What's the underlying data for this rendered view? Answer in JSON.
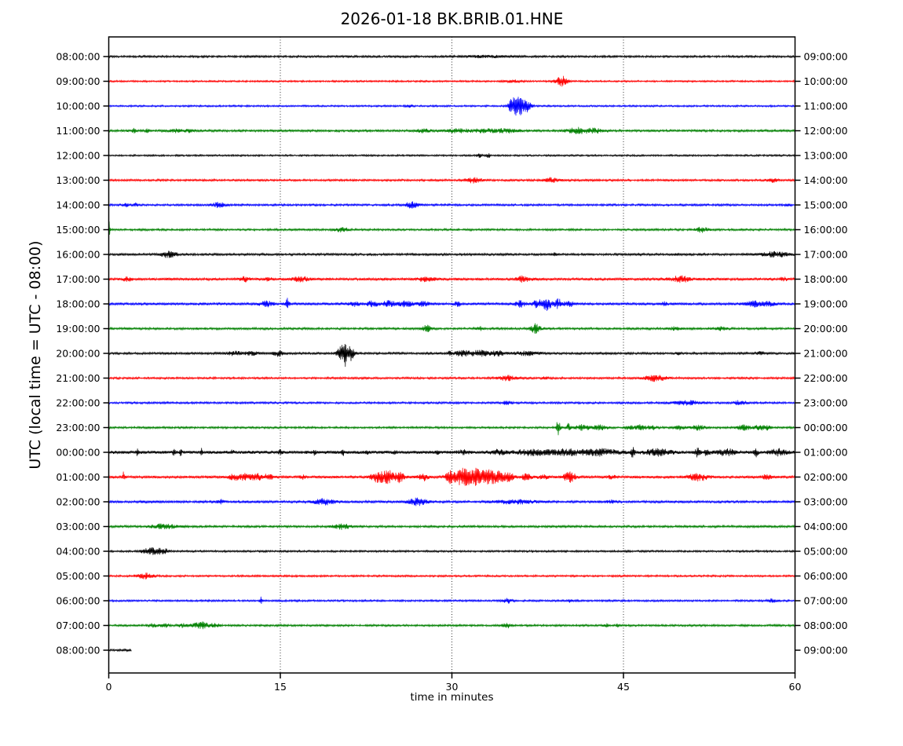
{
  "title": "2026-01-18 BK.BRIB.01.HNE",
  "x_axis": {
    "label": "time in minutes",
    "tick_values": [
      0,
      15,
      30,
      45,
      60
    ],
    "gridlines": [
      15,
      30,
      45
    ],
    "range": [
      0,
      60
    ]
  },
  "y_axis": {
    "label": "UTC (local time = UTC - 08:00)"
  },
  "chart_data": {
    "type": "line",
    "title": "2026-01-18 BK.BRIB.01.HNE",
    "xlabel": "time in minutes",
    "ylabel": "UTC (local time = UTC - 08:00)",
    "xlim": [
      0,
      60
    ],
    "minutes_per_row": 60,
    "grid": "vertical-dotted",
    "color_cycle": [
      "#000000",
      "#ff0000",
      "#0000ff",
      "#008000"
    ],
    "burst_format": "[center_minute, amplitude_px, width_minutes]",
    "rows": [
      {
        "utc_start": "08:00:00",
        "utc_end": "09:00:00",
        "color": "#000000",
        "base_amp": 1.3,
        "trace_end_min": 60,
        "bursts": [
          [
            33,
            1,
            1.5
          ]
        ]
      },
      {
        "utc_start": "09:00:00",
        "utc_end": "10:00:00",
        "color": "#ff0000",
        "base_amp": 1.1,
        "trace_end_min": 60,
        "bursts": [
          [
            35.4,
            1.2,
            0.5
          ],
          [
            39.6,
            6.5,
            0.35
          ]
        ]
      },
      {
        "utc_start": "10:00:00",
        "utc_end": "11:00:00",
        "color": "#0000ff",
        "base_amp": 1.1,
        "trace_end_min": 60,
        "bursts": [
          [
            26.3,
            1.5,
            0.2
          ],
          [
            35.3,
            9,
            0.25
          ],
          [
            35.9,
            12,
            0.3
          ],
          [
            36.6,
            7,
            0.25
          ]
        ]
      },
      {
        "utc_start": "11:00:00",
        "utc_end": "12:00:00",
        "color": "#008000",
        "base_amp": 1.4,
        "trace_end_min": 60,
        "bursts": [
          [
            2.2,
            2.2,
            0.15
          ],
          [
            3.4,
            1.8,
            0.15
          ],
          [
            5.7,
            2.2,
            0.4
          ],
          [
            7,
            1.5,
            0.3
          ],
          [
            27.5,
            2,
            0.4
          ],
          [
            30.5,
            2,
            0.8
          ],
          [
            33,
            2.2,
            0.8
          ],
          [
            35,
            2.5,
            0.6
          ],
          [
            41,
            3.5,
            0.7
          ],
          [
            42.5,
            2.5,
            0.4
          ]
        ]
      },
      {
        "utc_start": "12:00:00",
        "utc_end": "13:00:00",
        "color": "#000000",
        "base_amp": 1.1,
        "trace_end_min": 60,
        "bursts": [
          [
            32.4,
            2.8,
            0.12
          ],
          [
            33.2,
            2.8,
            0.12
          ]
        ]
      },
      {
        "utc_start": "13:00:00",
        "utc_end": "14:00:00",
        "color": "#ff0000",
        "base_amp": 1.3,
        "trace_end_min": 60,
        "bursts": [
          [
            31.9,
            3.2,
            0.5
          ],
          [
            38.7,
            3,
            0.4
          ],
          [
            58,
            2.2,
            0.3
          ]
        ]
      },
      {
        "utc_start": "14:00:00",
        "utc_end": "15:00:00",
        "color": "#0000ff",
        "base_amp": 1.3,
        "trace_end_min": 60,
        "bursts": [
          [
            1.5,
            2,
            0.15
          ],
          [
            2.3,
            2,
            0.15
          ],
          [
            9.6,
            2.8,
            0.4
          ],
          [
            26.5,
            3.5,
            0.4
          ],
          [
            59.4,
            2,
            0.15
          ]
        ]
      },
      {
        "utc_start": "15:00:00",
        "utc_end": "16:00:00",
        "color": "#008000",
        "base_amp": 1.3,
        "trace_end_min": 60,
        "bursts": [
          [
            0.05,
            13,
            0.04
          ],
          [
            20.4,
            2.5,
            0.4
          ],
          [
            51.8,
            3.2,
            0.4
          ]
        ]
      },
      {
        "utc_start": "16:00:00",
        "utc_end": "17:00:00",
        "color": "#000000",
        "base_amp": 1.4,
        "trace_end_min": 60,
        "bursts": [
          [
            5.3,
            3.8,
            0.5
          ],
          [
            39,
            1.8,
            0.1
          ],
          [
            49.7,
            2,
            0.12
          ],
          [
            58.3,
            3,
            0.8
          ]
        ]
      },
      {
        "utc_start": "17:00:00",
        "utc_end": "18:00:00",
        "color": "#ff0000",
        "base_amp": 1.6,
        "trace_end_min": 60,
        "bursts": [
          [
            1.6,
            2.5,
            0.25
          ],
          [
            11.9,
            2.5,
            0.3
          ],
          [
            14,
            2,
            0.2
          ],
          [
            16.8,
            3,
            0.5
          ],
          [
            27.8,
            3,
            0.5
          ],
          [
            36.2,
            3.5,
            0.4
          ],
          [
            50,
            3.5,
            0.6
          ],
          [
            59,
            2,
            0.2
          ]
        ]
      },
      {
        "utc_start": "18:00:00",
        "utc_end": "19:00:00",
        "color": "#0000ff",
        "base_amp": 1.6,
        "trace_end_min": 60,
        "bursts": [
          [
            13.8,
            3,
            0.4
          ],
          [
            15.6,
            7.5,
            0.12
          ],
          [
            21.5,
            2.5,
            0.3
          ],
          [
            23,
            3,
            0.4
          ],
          [
            24.5,
            3.5,
            0.4
          ],
          [
            26,
            3.5,
            0.4
          ],
          [
            27.5,
            3,
            0.3
          ],
          [
            30.5,
            2.5,
            0.2
          ],
          [
            36,
            3.5,
            0.3
          ],
          [
            37.5,
            5,
            0.3
          ],
          [
            38.3,
            7.5,
            0.25
          ],
          [
            39.3,
            5.5,
            0.3
          ],
          [
            40.3,
            3.5,
            0.25
          ],
          [
            48.5,
            2,
            0.2
          ],
          [
            56.5,
            3.5,
            0.5
          ],
          [
            57.8,
            3,
            0.3
          ]
        ]
      },
      {
        "utc_start": "19:00:00",
        "utc_end": "20:00:00",
        "color": "#008000",
        "base_amp": 1.4,
        "trace_end_min": 60,
        "bursts": [
          [
            27.8,
            3.5,
            0.35
          ],
          [
            32.5,
            2,
            0.25
          ],
          [
            37.3,
            5.5,
            0.3
          ],
          [
            49.5,
            1.8,
            0.3
          ],
          [
            53.5,
            1.8,
            0.3
          ]
        ]
      },
      {
        "utc_start": "20:00:00",
        "utc_end": "21:00:00",
        "color": "#000000",
        "base_amp": 1.4,
        "trace_end_min": 60,
        "bursts": [
          [
            11,
            2.2,
            0.5
          ],
          [
            12.5,
            2.2,
            0.4
          ],
          [
            14.8,
            3,
            0.3
          ],
          [
            20.3,
            9,
            0.25
          ],
          [
            20.7,
            13,
            0.2
          ],
          [
            21.2,
            8,
            0.2
          ],
          [
            29.8,
            2.8,
            0.1
          ],
          [
            31,
            3.5,
            0.5
          ],
          [
            32.5,
            3.5,
            0.5
          ],
          [
            34,
            3,
            0.4
          ],
          [
            36.5,
            2.2,
            0.8
          ],
          [
            49.8,
            1.8,
            0.12
          ],
          [
            57,
            2.2,
            0.2
          ]
        ]
      },
      {
        "utc_start": "21:00:00",
        "utc_end": "22:00:00",
        "color": "#ff0000",
        "base_amp": 1.3,
        "trace_end_min": 60,
        "bursts": [
          [
            34.8,
            3,
            0.5
          ],
          [
            38.2,
            1.8,
            0.2
          ],
          [
            47.8,
            4,
            0.6
          ]
        ]
      },
      {
        "utc_start": "22:00:00",
        "utc_end": "23:00:00",
        "color": "#0000ff",
        "base_amp": 1.3,
        "trace_end_min": 60,
        "bursts": [
          [
            34.9,
            2.2,
            0.3
          ],
          [
            50.5,
            2.5,
            0.8
          ],
          [
            55.2,
            2.5,
            0.4
          ]
        ]
      },
      {
        "utc_start": "23:00:00",
        "utc_end": "00:00:00",
        "color": "#008000",
        "base_amp": 1.3,
        "trace_end_min": 60,
        "bursts": [
          [
            39.3,
            11,
            0.12
          ],
          [
            40.2,
            4.5,
            0.12
          ],
          [
            41.5,
            3.5,
            0.5
          ],
          [
            43,
            3,
            0.4
          ],
          [
            45.5,
            2.5,
            0.3
          ],
          [
            46.5,
            3,
            0.3
          ],
          [
            47.5,
            2.5,
            0.3
          ],
          [
            50,
            2.5,
            0.3
          ],
          [
            51.5,
            3,
            0.4
          ],
          [
            55.5,
            3,
            0.4
          ],
          [
            56.8,
            2.5,
            0.3
          ],
          [
            57.5,
            2.5,
            0.3
          ]
        ]
      },
      {
        "utc_start": "00:00:00",
        "utc_end": "01:00:00",
        "color": "#000000",
        "base_amp": 2.0,
        "trace_end_min": 60,
        "bursts": [
          [
            2.5,
            3.5,
            0.06
          ],
          [
            5.7,
            8,
            0.06
          ],
          [
            6.3,
            3.5,
            0.06
          ],
          [
            8.1,
            4.5,
            0.06
          ],
          [
            10.8,
            2.5,
            0.1
          ],
          [
            15,
            3,
            0.1
          ],
          [
            18,
            2.5,
            0.1
          ],
          [
            20.5,
            3,
            0.1
          ],
          [
            22.6,
            3,
            0.08
          ],
          [
            25,
            2.5,
            0.1
          ],
          [
            28.7,
            4.5,
            0.08
          ],
          [
            31,
            2.5,
            0.3
          ],
          [
            34,
            2.5,
            0.5
          ],
          [
            37,
            3,
            1
          ],
          [
            40,
            3.2,
            1
          ],
          [
            43,
            3.5,
            1
          ],
          [
            45.8,
            5.5,
            0.15
          ],
          [
            48,
            3.5,
            0.8
          ],
          [
            51.5,
            5.5,
            0.15
          ],
          [
            52.3,
            5,
            0.15
          ],
          [
            54,
            3.5,
            0.6
          ],
          [
            56.6,
            5.5,
            0.12
          ],
          [
            58.5,
            3.5,
            0.5
          ]
        ]
      },
      {
        "utc_start": "01:00:00",
        "utc_end": "02:00:00",
        "color": "#ff0000",
        "base_amp": 1.6,
        "trace_end_min": 60,
        "bursts": [
          [
            1.3,
            6,
            0.06
          ],
          [
            11,
            3,
            0.4
          ],
          [
            12,
            3.5,
            0.4
          ],
          [
            13,
            3.5,
            0.4
          ],
          [
            14,
            3,
            0.3
          ],
          [
            17,
            2.2,
            0.2
          ],
          [
            23.5,
            6,
            0.4
          ],
          [
            24.5,
            7.5,
            0.4
          ],
          [
            25.5,
            6,
            0.3
          ],
          [
            27.5,
            4.5,
            0.3
          ],
          [
            30,
            8.5,
            0.4
          ],
          [
            31,
            10,
            0.4
          ],
          [
            32,
            9.5,
            0.4
          ],
          [
            33,
            9,
            0.4
          ],
          [
            34,
            7.5,
            0.4
          ],
          [
            35,
            5,
            0.3
          ],
          [
            36.5,
            3.5,
            0.3
          ],
          [
            38,
            2.5,
            0.3
          ],
          [
            40.3,
            7,
            0.35
          ],
          [
            44,
            2,
            0.3
          ],
          [
            51.5,
            4.5,
            0.6
          ],
          [
            57.5,
            2.5,
            0.3
          ]
        ]
      },
      {
        "utc_start": "02:00:00",
        "utc_end": "03:00:00",
        "color": "#0000ff",
        "base_amp": 1.5,
        "trace_end_min": 60,
        "bursts": [
          [
            9.8,
            2.5,
            0.25
          ],
          [
            18.8,
            3.5,
            0.6
          ],
          [
            27,
            4,
            0.6
          ],
          [
            35.5,
            2.2,
            1.2
          ],
          [
            44,
            1.8,
            0.3
          ]
        ]
      },
      {
        "utc_start": "03:00:00",
        "utc_end": "04:00:00",
        "color": "#008000",
        "base_amp": 1.4,
        "trace_end_min": 60,
        "bursts": [
          [
            4.8,
            3,
            0.7
          ],
          [
            20.4,
            3,
            0.5
          ]
        ]
      },
      {
        "utc_start": "04:00:00",
        "utc_end": "05:00:00",
        "color": "#000000",
        "base_amp": 1.2,
        "trace_end_min": 60,
        "bursts": [
          [
            3.8,
            4,
            0.6
          ],
          [
            4.8,
            2.5,
            0.3
          ]
        ]
      },
      {
        "utc_start": "05:00:00",
        "utc_end": "06:00:00",
        "color": "#ff0000",
        "base_amp": 1.2,
        "trace_end_min": 60,
        "bursts": [
          [
            3.2,
            3.2,
            0.5
          ]
        ]
      },
      {
        "utc_start": "06:00:00",
        "utc_end": "07:00:00",
        "color": "#0000ff",
        "base_amp": 1.2,
        "trace_end_min": 60,
        "bursts": [
          [
            13.3,
            4.5,
            0.07
          ],
          [
            34.9,
            2.5,
            0.3
          ],
          [
            40.3,
            1.8,
            0.1
          ],
          [
            58,
            2,
            0.25
          ]
        ]
      },
      {
        "utc_start": "07:00:00",
        "utc_end": "08:00:00",
        "color": "#008000",
        "base_amp": 1.3,
        "trace_end_min": 60,
        "bursts": [
          [
            3.8,
            2,
            0.3
          ],
          [
            5,
            2,
            0.3
          ],
          [
            6.5,
            2.2,
            0.3
          ],
          [
            8.1,
            4,
            0.5
          ],
          [
            9.3,
            2,
            0.3
          ],
          [
            34.8,
            2.8,
            0.25
          ],
          [
            43.5,
            1.8,
            0.15
          ],
          [
            44.5,
            1.8,
            0.1
          ]
        ]
      },
      {
        "utc_start": "08:00:00",
        "utc_end": "09:00:00",
        "color": "#000000",
        "base_amp": 1.4,
        "trace_end_min": 2.0,
        "bursts": []
      }
    ]
  }
}
